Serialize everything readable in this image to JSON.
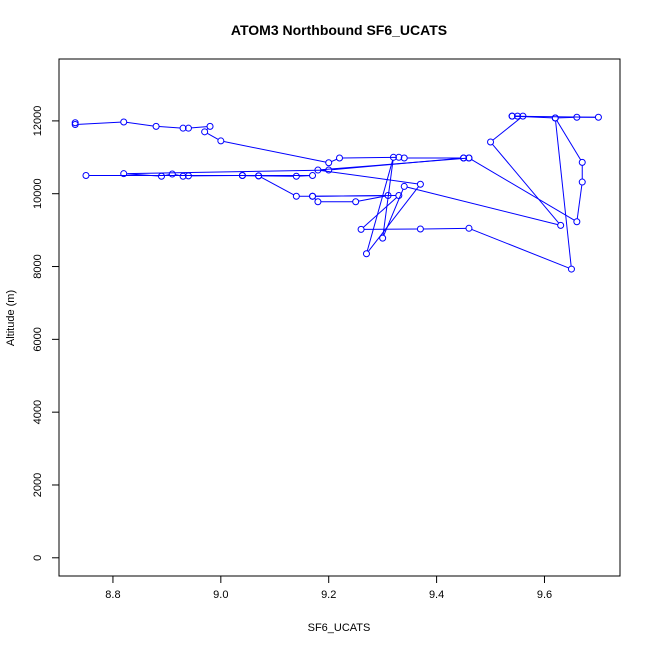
{
  "chart_data": {
    "type": "line",
    "title": "ATOM3 Northbound SF6_UCATS",
    "xlabel": "SF6_UCATS",
    "ylabel": "Altitude (m)",
    "xlim": [
      8.7,
      9.74
    ],
    "ylim": [
      -500,
      13700
    ],
    "xticks": [
      8.8,
      9.0,
      9.2,
      9.4,
      9.6
    ],
    "yticks": [
      0,
      2000,
      4000,
      6000,
      8000,
      10000,
      12000
    ],
    "xtick_labels": [
      "8.8",
      "9.0",
      "9.2",
      "9.4",
      "9.6"
    ],
    "ytick_labels": [
      "0",
      "2000",
      "4000",
      "6000",
      "8000",
      "10000",
      "12000"
    ],
    "grid": false,
    "legend": "none",
    "series": [
      {
        "color": "#0000ff",
        "marker": "open-circle",
        "points": [
          [
            8.73,
            11950
          ],
          [
            8.73,
            11900
          ],
          [
            8.82,
            11970
          ],
          [
            8.88,
            11850
          ],
          [
            8.93,
            11800
          ],
          [
            8.94,
            11800
          ],
          [
            8.98,
            11850
          ],
          [
            8.97,
            11700
          ],
          [
            9.0,
            11450
          ],
          [
            9.2,
            10850
          ],
          [
            9.22,
            10980
          ],
          [
            9.33,
            11000
          ],
          [
            9.34,
            10980
          ],
          [
            9.45,
            10980
          ],
          [
            9.46,
            10980
          ],
          [
            9.45,
            10980
          ],
          [
            9.2,
            10650
          ],
          [
            8.82,
            10550
          ],
          [
            8.89,
            10480
          ],
          [
            8.91,
            10540
          ],
          [
            8.93,
            10480
          ],
          [
            8.94,
            10490
          ],
          [
            9.04,
            10500
          ],
          [
            9.07,
            10490
          ],
          [
            9.14,
            10480
          ],
          [
            9.17,
            10500
          ],
          [
            8.75,
            10500
          ],
          [
            9.04,
            10500
          ],
          [
            9.07,
            10490
          ],
          [
            9.14,
            9930
          ],
          [
            9.17,
            9930
          ],
          [
            9.18,
            9780
          ],
          [
            9.25,
            9780
          ],
          [
            9.31,
            9950
          ],
          [
            9.17,
            9930
          ],
          [
            9.33,
            9950
          ],
          [
            9.26,
            9020
          ],
          [
            9.37,
            9030
          ],
          [
            9.46,
            9050
          ],
          [
            9.65,
            7930
          ],
          [
            9.62,
            12080
          ],
          [
            9.66,
            12100
          ],
          [
            9.7,
            12100
          ],
          [
            9.54,
            12130
          ],
          [
            9.56,
            12130
          ],
          [
            9.5,
            11420
          ],
          [
            9.63,
            9130
          ],
          [
            9.34,
            10200
          ],
          [
            9.3,
            8780
          ],
          [
            9.32,
            11000
          ],
          [
            9.27,
            8350
          ],
          [
            9.37,
            10260
          ],
          [
            9.18,
            10650
          ],
          [
            9.46,
            10980
          ],
          [
            9.66,
            9230
          ],
          [
            9.67,
            10320
          ],
          [
            9.67,
            10860
          ],
          [
            9.62,
            12080
          ],
          [
            9.54,
            12130
          ],
          [
            9.55,
            12130
          ]
        ]
      }
    ]
  }
}
